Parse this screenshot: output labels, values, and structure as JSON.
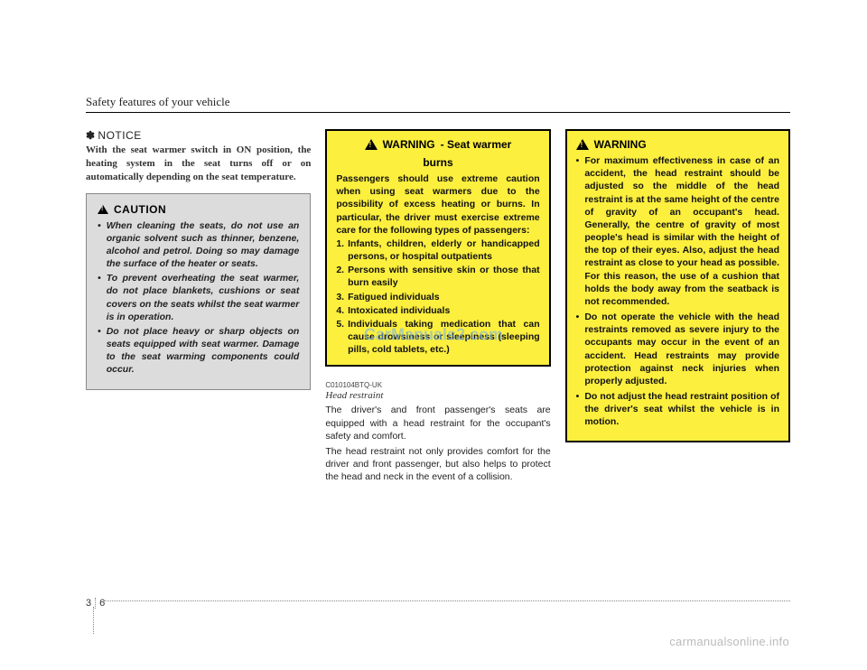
{
  "header": {
    "title": "Safety features of your vehicle"
  },
  "notice": {
    "star": "✽",
    "label": "NOTICE",
    "body": "With the seat warmer switch in ON position, the heating system in the seat turns off or on automatically depending on the seat temperature."
  },
  "caution": {
    "label": "CAUTION",
    "items": [
      "When cleaning the seats, do not use an organic solvent such as thinner, benzene, alcohol and petrol. Doing so may damage the surface of the heater or seats.",
      "To prevent overheating the seat warmer, do not place blankets, cushions or seat covers on the seats whilst the seat warmer is in operation.",
      "Do not place heavy or sharp objects on seats equipped with seat warmer. Damage to the seat warming components could occur."
    ]
  },
  "warning1": {
    "label": "WARNING",
    "subtitle_prefix": "- Seat warmer",
    "subtitle_line2": "burns",
    "intro": "Passengers should use extreme caution when using seat warmers due to the possibility of excess heating or burns. In particular, the driver must exercise extreme care for the following types of passengers:",
    "items": [
      "Infants, children, elderly or handicapped persons, or hospital outpatients",
      "Persons with sensitive skin or those that burn easily",
      "Fatigued individuals",
      "Intoxicated individuals",
      "Individuals taking medication that can cause drowsiness or sleepiness (sleeping pills, cold tablets, etc.)"
    ]
  },
  "headrestraint": {
    "code": "C010104BTQ-UK",
    "title": "Head restraint",
    "p1": "The driver's and front passenger's seats are equipped with a head restraint for the occupant's safety and comfort.",
    "p2": "The head restraint not only provides comfort for the driver and front passenger, but also helps to protect the head and neck in the event of a collision."
  },
  "warning2": {
    "label": "WARNING",
    "items": [
      "For maximum effectiveness in case of an accident, the head restraint should be adjusted so the middle of the head restraint is at the same height of the centre of gravity of an occupant's head. Generally, the centre of gravity of most people's head is similar with the height of the top of their eyes. Also, adjust the head restraint as close to your head as possible. For this reason, the use of a cushion that holds the body away from the seatback is not recommended.",
      "Do not operate the vehicle with the head restraints removed as severe injury to the occupants may occur in the event of an accident. Head restraints may provide protection against neck injuries when properly adjusted.",
      "Do not adjust the head restraint position of the driver's seat whilst the vehicle is in motion."
    ]
  },
  "pagenum": {
    "section": "3",
    "page": "6"
  },
  "watermarks": {
    "center": "CarManuals2.com",
    "bottom": "carmanualsonline.info"
  }
}
